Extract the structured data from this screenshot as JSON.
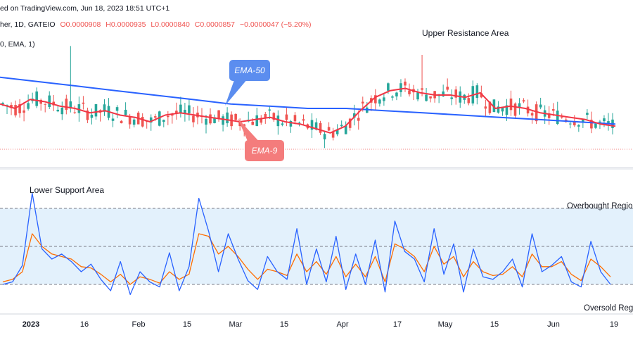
{
  "header": {
    "published": "ed on TradingView.com, Jun 18, 2023 18:51 UTC+1",
    "symbol": "her, 1D, GATEIO",
    "ohlc": {
      "o": "O0.0000908",
      "h": "H0.0000935",
      "l": "L0.0000840",
      "c": "C0.0000857",
      "chg": "−0.0000047 (−5.20%)"
    },
    "indicator": "0, EMA, 1)"
  },
  "annotations": {
    "upper_resistance": "Upper Resistance Area",
    "lower_support": "Lower Support Area",
    "ema50_callout": "EMA-50",
    "ema9_callout": "EMA-9",
    "overbought": "Overbought Regio",
    "oversold": "Oversold Regi"
  },
  "x_axis": {
    "ticks": [
      "2023",
      "16",
      "Feb",
      "15",
      "Mar",
      "15",
      "Apr",
      "17",
      "May",
      "15",
      "Jun",
      "19"
    ]
  },
  "colors": {
    "candle_up": "#26a69a",
    "candle_down": "#ef5350",
    "ema9": "#f23645",
    "ema50": "#2962ff",
    "stoch_k": "#2962ff",
    "stoch_d": "#ff6d00",
    "band_fill": "#e3f1fc",
    "callout_blue": "#5b8def",
    "callout_red": "#f47c7c"
  },
  "chart_data": [
    {
      "type": "candlestick",
      "interval": "1D",
      "x_range": [
        "2022-12-29",
        "2023-06-19"
      ],
      "ema9_values": [
        0.000106,
        0.000104,
        0.000108,
        0.000107,
        0.000105,
        0.000104,
        0.000102,
        0.000103,
        0.000101,
        0.0001,
        9.8e-05,
        0.000101,
        0.000102,
        0.000101,
        0.0001,
        9.9e-05,
        9.8e-05,
        9.9e-05,
        0.0001,
        9.8e-05,
        9.7e-05,
        9.5e-05,
        9.3e-05,
        9.6e-05,
        0.000103,
        0.000109,
        0.000112,
        0.000113,
        0.000111,
        0.00011,
        0.00011,
        0.000109,
        0.000111,
        0.000104,
        0.000105,
        0.000104,
        0.000102,
        0.000101,
        0.0001,
        9.9e-05,
        9.7e-05,
        9.6e-05
      ],
      "ema50_values": [
        0.000118,
        0.000116,
        0.000114,
        0.000112,
        0.00011,
        0.000108,
        0.000106,
        0.000105,
        0.000104,
        0.000104,
        0.000103,
        0.000102,
        0.000101,
        0.0001,
        9.9e-05,
        9.8e-05,
        9.7e-05
      ],
      "notes": [
        "Upper Resistance Area",
        "Lower Support Area"
      ]
    },
    {
      "type": "line",
      "title": "",
      "y_range": [
        0,
        100
      ],
      "bands": {
        "upper": 80,
        "middle": 50,
        "lower": 20
      },
      "series": [
        {
          "values": [
            20,
            22,
            35,
            92,
            48,
            40,
            44,
            38,
            30,
            36,
            24,
            15,
            38,
            12,
            30,
            22,
            18,
            45,
            15,
            34,
            88,
            62,
            30,
            60,
            40,
            23,
            16,
            42,
            30,
            24,
            64,
            20,
            48,
            22,
            58,
            16,
            44,
            20,
            55,
            14,
            70,
            46,
            40,
            22,
            64,
            28,
            52,
            14,
            48,
            26,
            24,
            30,
            40,
            18,
            60,
            30,
            35,
            42,
            22,
            18,
            54,
            30,
            20
          ]
        },
        {
          "values": [
            22,
            24,
            30,
            60,
            50,
            44,
            42,
            40,
            34,
            33,
            28,
            22,
            28,
            20,
            26,
            24,
            21,
            30,
            24,
            28,
            60,
            58,
            44,
            50,
            42,
            32,
            24,
            32,
            30,
            27,
            44,
            30,
            38,
            28,
            42,
            26,
            36,
            26,
            42,
            22,
            52,
            48,
            42,
            30,
            50,
            36,
            42,
            26,
            38,
            30,
            27,
            28,
            34,
            26,
            44,
            34,
            34,
            38,
            28,
            23,
            40,
            34,
            26
          ]
        }
      ]
    }
  ]
}
